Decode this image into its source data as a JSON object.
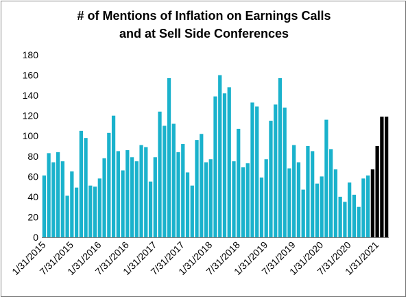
{
  "chart_data": {
    "type": "bar",
    "title_line1": "# of Mentions of Inflation on Earnings Calls",
    "title_line2": "and at Sell Side Conferences",
    "xlabel": "",
    "ylabel": "",
    "ylim": [
      0,
      180
    ],
    "yticks": [
      0,
      20,
      40,
      60,
      80,
      100,
      120,
      140,
      160,
      180
    ],
    "grid": false,
    "colors": {
      "default": "#1ab2cc",
      "highlight": "#000000"
    },
    "x_tick_labels": [
      {
        "index": 0,
        "label": "1/31/2015"
      },
      {
        "index": 6,
        "label": "7/31/2015"
      },
      {
        "index": 12,
        "label": "1/31/2016"
      },
      {
        "index": 18,
        "label": "7/31/2016"
      },
      {
        "index": 24,
        "label": "1/31/2017"
      },
      {
        "index": 30,
        "label": "7/31/2017"
      },
      {
        "index": 36,
        "label": "1/31/2018"
      },
      {
        "index": 42,
        "label": "7/31/2018"
      },
      {
        "index": 48,
        "label": "1/31/2019"
      },
      {
        "index": 54,
        "label": "7/31/2019"
      },
      {
        "index": 60,
        "label": "1/31/2020"
      },
      {
        "index": 66,
        "label": "7/31/2020"
      },
      {
        "index": 72,
        "label": "1/31/2021"
      }
    ],
    "values": [
      61,
      83,
      74,
      84,
      75,
      41,
      65,
      49,
      105,
      98,
      51,
      50,
      58,
      78,
      103,
      120,
      85,
      66,
      86,
      79,
      75,
      91,
      89,
      55,
      79,
      124,
      110,
      157,
      112,
      84,
      92,
      64,
      51,
      96,
      102,
      74,
      77,
      139,
      160,
      142,
      148,
      75,
      107,
      69,
      73,
      133,
      129,
      59,
      77,
      115,
      131,
      157,
      128,
      68,
      91,
      74,
      47,
      90,
      85,
      53,
      60,
      116,
      87,
      67,
      40,
      35,
      54,
      42,
      30,
      58,
      61,
      67,
      90,
      119,
      119
    ],
    "highlight_from_index": 71
  }
}
